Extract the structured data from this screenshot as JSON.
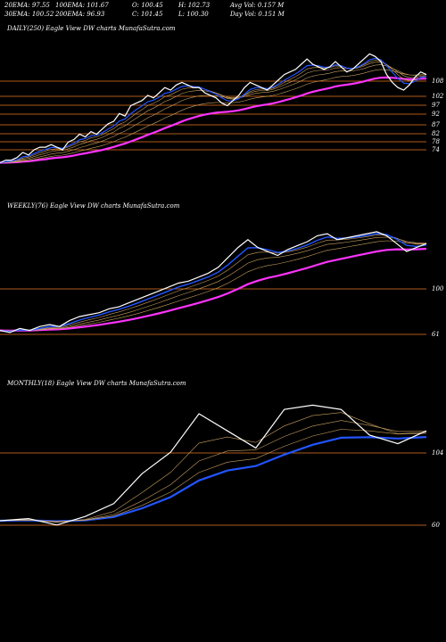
{
  "header": {
    "row1": [
      "20EMA: 97.55",
      "100EMA: 101.67",
      "O: 100.45",
      "H: 102.73",
      "Avg Vol: 0.157 M"
    ],
    "row2": [
      "30EMA: 100.52",
      "200EMA: 96.93",
      "C: 101.45",
      "L: 100.30",
      "Day Vol: 0.151 M"
    ]
  },
  "colors": {
    "background": "#000000",
    "price": "#ffffff",
    "ema_short": "#2255ff",
    "ema_long": "#ff33ff",
    "ema_mid": "#c8a060",
    "level_line": "#b05a1a"
  },
  "chart_data": [
    {
      "type": "line",
      "title": "DAILY(250) Eagle View DW charts MunafaSutra.com",
      "level_labels": [
        "108",
        "102",
        "97",
        "92",
        "87",
        "82",
        "78",
        "74"
      ],
      "series": [
        {
          "values": [
            66,
            67,
            67,
            68,
            70,
            69,
            71,
            72,
            72,
            73,
            72,
            71,
            74,
            75,
            77,
            76,
            78,
            77,
            79,
            81,
            82,
            85,
            84,
            88,
            89,
            90,
            92,
            91,
            93,
            95,
            94,
            96,
            97,
            96,
            95,
            95,
            93,
            92,
            91,
            89,
            88,
            90,
            92,
            95,
            97,
            96,
            95,
            94,
            96,
            98,
            100,
            101,
            102,
            104,
            106,
            104,
            103,
            102,
            103,
            105,
            103,
            101,
            102,
            104,
            106,
            108,
            107,
            105,
            100,
            97,
            95,
            94,
            96,
            99,
            101,
            100
          ]
        }
      ]
    },
    {
      "type": "line",
      "title": "WEEKLY(76) Eagle View DW charts MunafaSutra.com",
      "level_labels": [
        "100",
        "61"
      ],
      "series": [
        {
          "values": [
            56,
            55,
            57,
            56,
            58,
            59,
            58,
            61,
            63,
            64,
            65,
            67,
            68,
            70,
            72,
            74,
            76,
            78,
            80,
            81,
            83,
            85,
            88,
            93,
            98,
            102,
            98,
            96,
            94,
            97,
            99,
            101,
            104,
            105,
            102,
            103,
            104,
            105,
            106,
            104,
            100,
            96,
            98,
            100
          ]
        }
      ]
    },
    {
      "type": "line",
      "title": "MONTHLY(18) Eagle View DW charts MunafaSutra.com",
      "level_labels": [
        "104",
        "60"
      ],
      "series": [
        {
          "values": [
            60,
            61,
            58,
            62,
            68,
            82,
            92,
            110,
            102,
            94,
            112,
            114,
            112,
            100,
            96,
            102
          ]
        }
      ]
    }
  ]
}
